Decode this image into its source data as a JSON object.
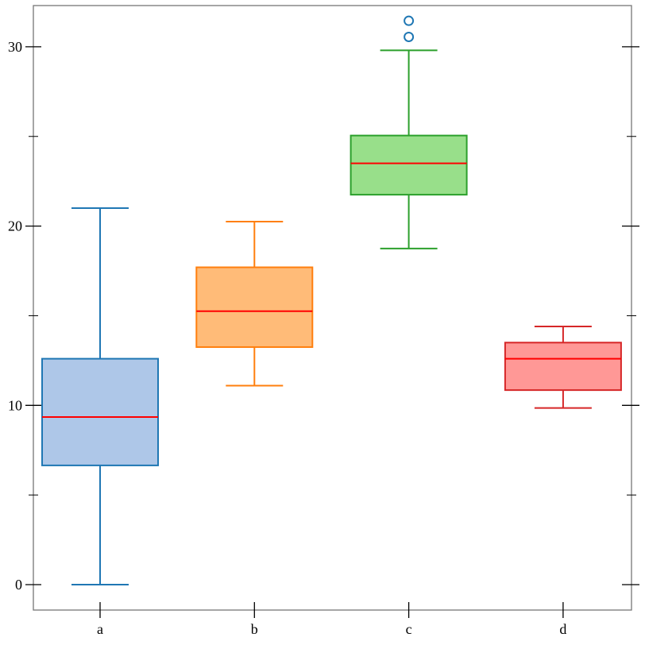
{
  "chart_data": {
    "type": "box",
    "title": "",
    "xlabel": "",
    "ylabel": "",
    "categories": [
      "a",
      "b",
      "c",
      "d"
    ],
    "ylim": [
      -1.4,
      32.3
    ],
    "yticks_major": [
      0,
      10,
      20,
      30
    ],
    "yticks_major_labels": [
      "0",
      "10",
      "20",
      "30"
    ],
    "yticks_minor": [
      5,
      15,
      25
    ],
    "grid": false,
    "median_color": "#ff0000",
    "boxes": [
      {
        "name": "a",
        "whisker_low": 0.0,
        "q1": 6.65,
        "median": 9.35,
        "q3": 12.6,
        "whisker_high": 21.0,
        "outliers": [],
        "edge_color": "#1f77b4",
        "fill_color": "#aec7e8"
      },
      {
        "name": "b",
        "whisker_low": 11.1,
        "q1": 13.25,
        "median": 15.25,
        "q3": 17.7,
        "whisker_high": 20.25,
        "outliers": [],
        "edge_color": "#ff7f0e",
        "fill_color": "#ffbb78"
      },
      {
        "name": "c",
        "whisker_low": 18.75,
        "q1": 21.75,
        "median": 23.5,
        "q3": 25.05,
        "whisker_high": 29.8,
        "outliers": [
          30.55,
          31.45
        ],
        "edge_color": "#2ca02c",
        "fill_color": "#98df8a"
      },
      {
        "name": "d",
        "whisker_low": 9.85,
        "q1": 10.85,
        "median": 12.6,
        "q3": 13.5,
        "whisker_high": 14.4,
        "outliers": [],
        "edge_color": "#d62728",
        "fill_color": "#ff9896"
      }
    ],
    "outlier_color": "#1f77b4"
  }
}
